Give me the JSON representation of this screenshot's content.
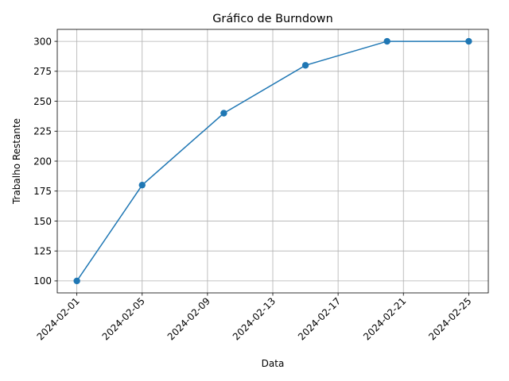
{
  "chart_data": {
    "type": "line",
    "title": "Gráfico de Burndown",
    "xlabel": "Data",
    "ylabel": "Trabalho Restante",
    "x": [
      "2024-02-01",
      "2024-02-05",
      "2024-02-10",
      "2024-02-15",
      "2024-02-20",
      "2024-02-25"
    ],
    "series": [
      {
        "values": [
          100,
          180,
          240,
          280,
          300,
          300
        ]
      }
    ],
    "x_ticks": [
      "2024-02-01",
      "2024-02-05",
      "2024-02-09",
      "2024-02-13",
      "2024-02-17",
      "2024-02-21",
      "2024-02-25"
    ],
    "y_ticks": [
      100,
      125,
      150,
      175,
      200,
      225,
      250,
      275,
      300
    ],
    "xlim": [
      "2024-01-30.8",
      "2024-02-26.2"
    ],
    "ylim": [
      90,
      310
    ],
    "grid": true,
    "line_color": "#1f77b4"
  }
}
